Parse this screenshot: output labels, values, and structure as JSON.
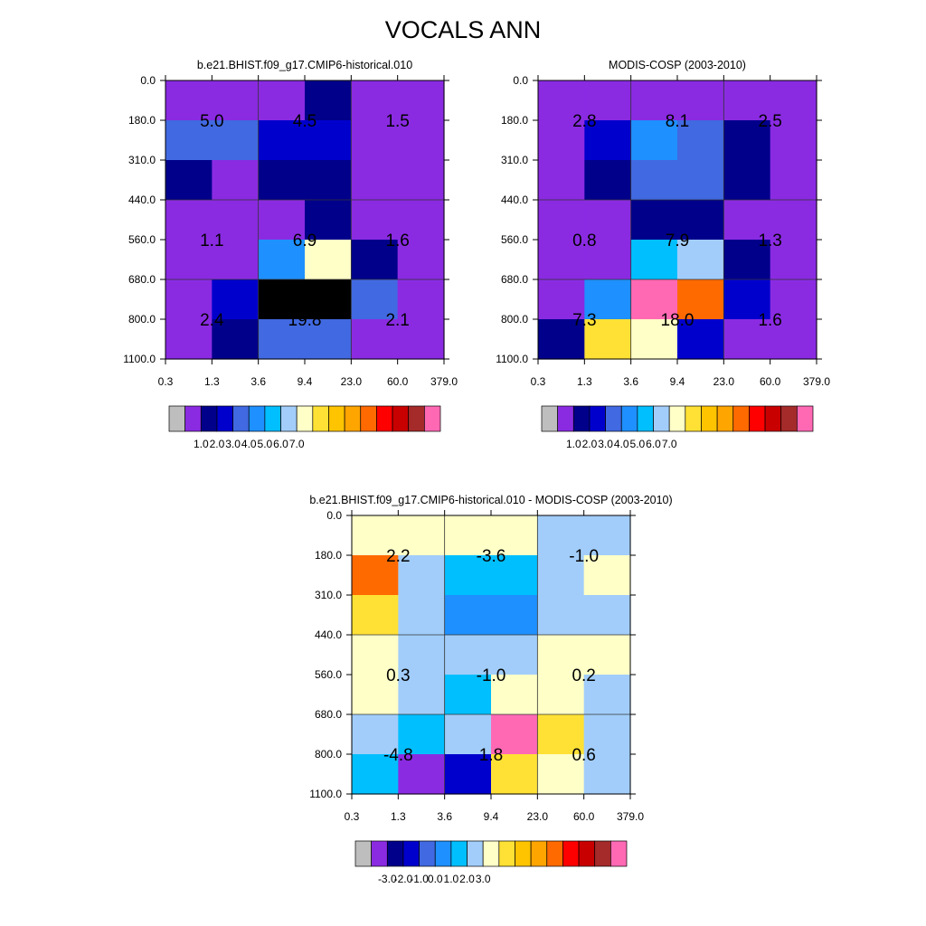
{
  "main_title": "VOCALS ANN",
  "chart_data": [
    {
      "type": "heatmap",
      "title": "b.e21.BHIST.f09_g17.CMIP6-historical.010",
      "xlabel": "",
      "ylabel": "",
      "x_tick_labels": [
        "0.3",
        "1.3",
        "3.6",
        "9.4",
        "23.0",
        "60.0",
        "379.0"
      ],
      "y_tick_labels": [
        "0.0",
        "180.0",
        "310.0",
        "440.0",
        "560.0",
        "680.0",
        "800.0",
        "1100.0"
      ],
      "grid": "on",
      "cells_color_index": [
        [
          1,
          1,
          1,
          2,
          1,
          1
        ],
        [
          4,
          4,
          3,
          3,
          1,
          1
        ],
        [
          2,
          1,
          2,
          2,
          1,
          1
        ],
        [
          1,
          1,
          1,
          2,
          1,
          1
        ],
        [
          1,
          1,
          5,
          8,
          2,
          1
        ],
        [
          1,
          3,
          17,
          18,
          4,
          1
        ],
        [
          1,
          2,
          4,
          4,
          1,
          1
        ]
      ],
      "box_values": [
        [
          "5.0",
          "4.5",
          "1.5"
        ],
        [
          "1.1",
          "6.9",
          "1.6"
        ],
        [
          "2.4",
          "19.8",
          "2.1"
        ]
      ],
      "colorbar": {
        "colors": [
          "#bebebe",
          "#8a2be2",
          "#00008b",
          "#0000cd",
          "#4169e1",
          "#1e90ff",
          "#00bfff",
          "#a2cdfa",
          "#ffffc8",
          "#ffe135",
          "#ffc400",
          "#ffa500",
          "#ff6a00",
          "#ff0000",
          "#c80000",
          "#a52a2a",
          "#ff69b4"
        ],
        "tick_labels": [
          "1.0",
          "2.0",
          "3.0",
          "4.0",
          "5.0",
          "6.0",
          "7.0"
        ]
      }
    },
    {
      "type": "heatmap",
      "title": "MODIS-COSP (2003-2010)",
      "xlabel": "",
      "ylabel": "",
      "x_tick_labels": [
        "0.3",
        "1.3",
        "3.6",
        "9.4",
        "23.0",
        "60.0",
        "379.0"
      ],
      "y_tick_labels": [
        "0.0",
        "180.0",
        "310.0",
        "440.0",
        "560.0",
        "680.0",
        "800.0",
        "1100.0"
      ],
      "grid": "on",
      "cells_color_index": [
        [
          1,
          1,
          1,
          1,
          1,
          1
        ],
        [
          1,
          3,
          5,
          4,
          2,
          1
        ],
        [
          1,
          2,
          4,
          4,
          2,
          1
        ],
        [
          1,
          1,
          2,
          2,
          1,
          1
        ],
        [
          1,
          1,
          6,
          7,
          2,
          1
        ],
        [
          1,
          5,
          16,
          12,
          3,
          1
        ],
        [
          2,
          9,
          8,
          3,
          1,
          1
        ]
      ],
      "box_values": [
        [
          "2.8",
          "8.1",
          "2.5"
        ],
        [
          "0.8",
          "7.9",
          "1.3"
        ],
        [
          "7.3",
          "18.0",
          "1.6"
        ]
      ],
      "colorbar": {
        "colors": [
          "#bebebe",
          "#8a2be2",
          "#00008b",
          "#0000cd",
          "#4169e1",
          "#1e90ff",
          "#00bfff",
          "#a2cdfa",
          "#ffffc8",
          "#ffe135",
          "#ffc400",
          "#ffa500",
          "#ff6a00",
          "#ff0000",
          "#c80000",
          "#a52a2a",
          "#ff69b4"
        ],
        "tick_labels": [
          "1.0",
          "2.0",
          "3.0",
          "4.0",
          "5.0",
          "6.0",
          "7.0"
        ]
      }
    },
    {
      "type": "heatmap",
      "title": "b.e21.BHIST.f09_g17.CMIP6-historical.010 - MODIS-COSP (2003-2010)",
      "xlabel": "",
      "ylabel": "",
      "x_tick_labels": [
        "0.3",
        "1.3",
        "3.6",
        "9.4",
        "23.0",
        "60.0",
        "379.0"
      ],
      "y_tick_labels": [
        "0.0",
        "180.0",
        "310.0",
        "440.0",
        "560.0",
        "680.0",
        "800.0",
        "1100.0"
      ],
      "grid": "on",
      "cells_color_index": [
        [
          8,
          8,
          8,
          8,
          7,
          7
        ],
        [
          12,
          7,
          6,
          6,
          7,
          8
        ],
        [
          9,
          7,
          5,
          5,
          7,
          7
        ],
        [
          8,
          7,
          7,
          7,
          8,
          8
        ],
        [
          8,
          7,
          6,
          8,
          8,
          7
        ],
        [
          7,
          6,
          7,
          16,
          9,
          7
        ],
        [
          6,
          1,
          3,
          9,
          8,
          7
        ]
      ],
      "box_values": [
        [
          "2.2",
          "-3.6",
          "-1.0"
        ],
        [
          "0.3",
          "-1.0",
          "0.2"
        ],
        [
          "-4.8",
          "1.8",
          "0.6"
        ]
      ],
      "colorbar": {
        "colors": [
          "#bebebe",
          "#8a2be2",
          "#00008b",
          "#0000cd",
          "#4169e1",
          "#1e90ff",
          "#00bfff",
          "#a2cdfa",
          "#ffffc8",
          "#ffe135",
          "#ffc400",
          "#ffa500",
          "#ff6a00",
          "#ff0000",
          "#c80000",
          "#a52a2a",
          "#ff69b4"
        ],
        "tick_labels": [
          "-3.0",
          "-2.0",
          "-1.0",
          "0.0",
          "1.0",
          "2.0",
          "3.0"
        ]
      }
    }
  ]
}
